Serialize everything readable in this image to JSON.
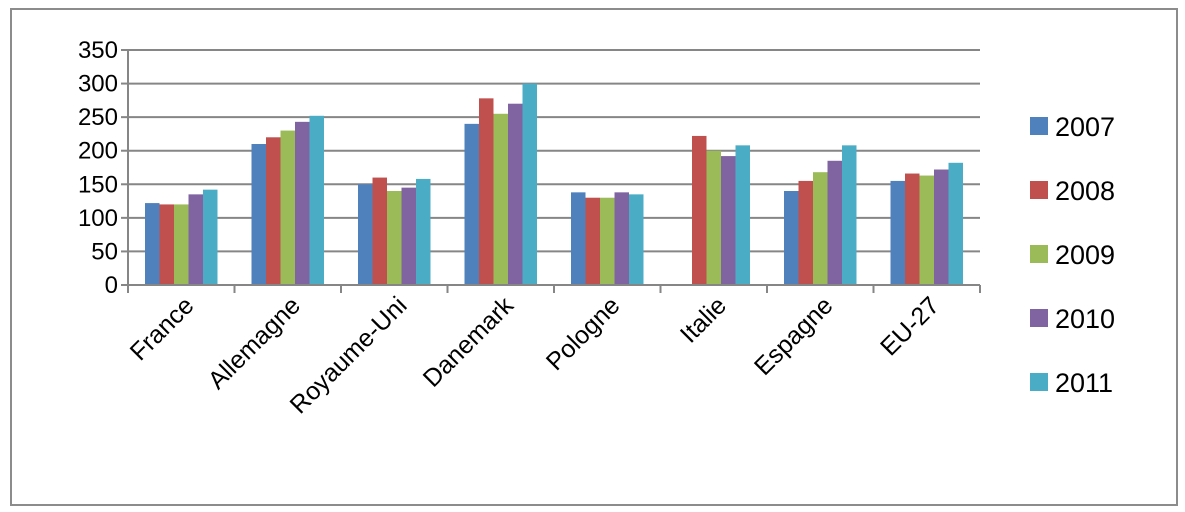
{
  "chart_data": {
    "type": "bar",
    "title": "",
    "xlabel": "",
    "ylabel": "",
    "ylim": [
      0,
      350
    ],
    "yticks": [
      0,
      50,
      100,
      150,
      200,
      250,
      300,
      350
    ],
    "grid": true,
    "legend_position": "right",
    "categories": [
      "France",
      "Allemagne",
      "Royaume-Uni",
      "Danemark",
      "Pologne",
      "Italie",
      "Espagne",
      "EU-27"
    ],
    "series": [
      {
        "name": "2007",
        "color": "#4f81bd",
        "values": [
          122,
          210,
          150,
          240,
          138,
          null,
          140,
          155
        ]
      },
      {
        "name": "2008",
        "color": "#c0504d",
        "values": [
          120,
          220,
          160,
          278,
          130,
          222,
          155,
          166
        ]
      },
      {
        "name": "2009",
        "color": "#9bbb59",
        "values": [
          120,
          230,
          140,
          255,
          130,
          200,
          168,
          163
        ]
      },
      {
        "name": "2010",
        "color": "#8064a2",
        "values": [
          135,
          243,
          145,
          270,
          138,
          192,
          185,
          172
        ]
      },
      {
        "name": "2011",
        "color": "#4bacc6",
        "values": [
          142,
          252,
          158,
          300,
          135,
          208,
          208,
          182
        ]
      }
    ]
  }
}
